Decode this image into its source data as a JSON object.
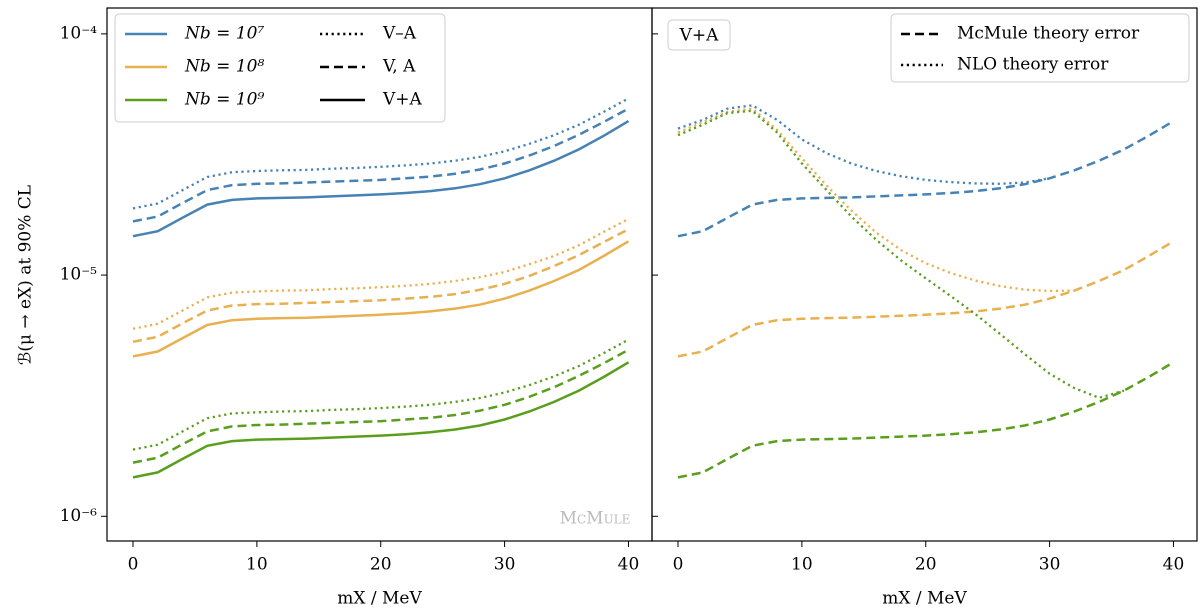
{
  "chart_data": [
    {
      "type": "line",
      "ylabel": "ℬ(μ → eX) at 90% CL",
      "xlabel": "mX / MeV",
      "log_y": true,
      "xlim": [
        -2.1,
        41.9
      ],
      "ylim": [
        7.9e-07,
        0.000128
      ],
      "xticks": [
        0,
        10,
        20,
        30,
        40
      ],
      "yticks": [
        {
          "value": 0.0001,
          "label": "10⁻⁴"
        },
        {
          "value": 1e-05,
          "label": "10⁻⁵"
        },
        {
          "value": 1e-06,
          "label": "10⁻⁶"
        }
      ],
      "annotation": "McMule",
      "legend": {
        "position": "upper left",
        "colors": [
          {
            "label": "Nb = 10⁷",
            "color": "#4682b4"
          },
          {
            "label": "Nb = 10⁸",
            "color": "#e8b04f"
          },
          {
            "label": "Nb = 10⁹",
            "color": "#5a9e1e"
          }
        ],
        "styles": [
          {
            "label": "V–A",
            "dash": "dotted"
          },
          {
            "label": "V, A",
            "dash": "dashed"
          },
          {
            "label": "V+A",
            "dash": "solid"
          }
        ]
      },
      "x": [
        0,
        2,
        4,
        6,
        8,
        10,
        12,
        14,
        16,
        18,
        20,
        22,
        24,
        26,
        28,
        30,
        32,
        34,
        36,
        38,
        40
      ],
      "series": [
        {
          "color": "#4682b4",
          "dash": "dotted",
          "values": [
            1.89e-05,
            1.98e-05,
            2.25e-05,
            2.55e-05,
            2.67e-05,
            2.7e-05,
            2.72e-05,
            2.73e-05,
            2.76e-05,
            2.78e-05,
            2.81e-05,
            2.85e-05,
            2.9e-05,
            2.98e-05,
            3.09e-05,
            3.26e-05,
            3.5e-05,
            3.8e-05,
            4.2e-05,
            4.75e-05,
            5.4e-05
          ]
        },
        {
          "color": "#4682b4",
          "dash": "dashed",
          "values": [
            1.67e-05,
            1.75e-05,
            1.99e-05,
            2.25e-05,
            2.36e-05,
            2.39e-05,
            2.4e-05,
            2.42e-05,
            2.44e-05,
            2.46e-05,
            2.48e-05,
            2.52e-05,
            2.56e-05,
            2.63e-05,
            2.74e-05,
            2.9e-05,
            3.13e-05,
            3.43e-05,
            3.82e-05,
            4.31e-05,
            4.9e-05
          ]
        },
        {
          "color": "#4682b4",
          "dash": "solid",
          "values": [
            1.45e-05,
            1.52e-05,
            1.73e-05,
            1.96e-05,
            2.05e-05,
            2.08e-05,
            2.09e-05,
            2.1e-05,
            2.12e-05,
            2.14e-05,
            2.16e-05,
            2.19e-05,
            2.23e-05,
            2.29e-05,
            2.38e-05,
            2.52e-05,
            2.72e-05,
            2.98e-05,
            3.32e-05,
            3.78e-05,
            4.35e-05
          ]
        },
        {
          "color": "#e8b04f",
          "dash": "dotted",
          "values": [
            5.99e-06,
            6.28e-06,
            7.13e-06,
            8.08e-06,
            8.46e-06,
            8.56e-06,
            8.62e-06,
            8.65e-06,
            8.75e-06,
            8.81e-06,
            8.91e-06,
            9.03e-06,
            9.19e-06,
            9.45e-06,
            9.8e-06,
            1.03e-05,
            1.11e-05,
            1.2e-05,
            1.33e-05,
            1.51e-05,
            1.71e-05
          ]
        },
        {
          "color": "#e8b04f",
          "dash": "dashed",
          "values": [
            5.29e-06,
            5.55e-06,
            6.31e-06,
            7.13e-06,
            7.48e-06,
            7.58e-06,
            7.61e-06,
            7.67e-06,
            7.73e-06,
            7.8e-06,
            7.86e-06,
            7.99e-06,
            8.12e-06,
            8.34e-06,
            8.69e-06,
            9.19e-06,
            9.92e-06,
            1.09e-05,
            1.21e-05,
            1.37e-05,
            1.55e-05
          ]
        },
        {
          "color": "#e8b04f",
          "dash": "solid",
          "values": [
            4.6e-06,
            4.82e-06,
            5.48e-06,
            6.21e-06,
            6.5e-06,
            6.59e-06,
            6.63e-06,
            6.66e-06,
            6.72e-06,
            6.78e-06,
            6.85e-06,
            6.94e-06,
            7.07e-06,
            7.26e-06,
            7.54e-06,
            7.99e-06,
            8.62e-06,
            9.45e-06,
            1.05e-05,
            1.2e-05,
            1.38e-05
          ]
        },
        {
          "color": "#5a9e1e",
          "dash": "dotted",
          "values": [
            1.89e-06,
            1.98e-06,
            2.25e-06,
            2.55e-06,
            2.67e-06,
            2.7e-06,
            2.72e-06,
            2.73e-06,
            2.76e-06,
            2.78e-06,
            2.81e-06,
            2.85e-06,
            2.9e-06,
            2.98e-06,
            3.09e-06,
            3.26e-06,
            3.5e-06,
            3.8e-06,
            4.2e-06,
            4.75e-06,
            5.4e-06
          ]
        },
        {
          "color": "#5a9e1e",
          "dash": "dashed",
          "values": [
            1.67e-06,
            1.75e-06,
            1.99e-06,
            2.25e-06,
            2.36e-06,
            2.39e-06,
            2.4e-06,
            2.42e-06,
            2.44e-06,
            2.46e-06,
            2.48e-06,
            2.52e-06,
            2.56e-06,
            2.63e-06,
            2.74e-06,
            2.9e-06,
            3.13e-06,
            3.43e-06,
            3.82e-06,
            4.31e-06,
            4.9e-06
          ]
        },
        {
          "color": "#5a9e1e",
          "dash": "solid",
          "values": [
            1.45e-06,
            1.52e-06,
            1.73e-06,
            1.96e-06,
            2.05e-06,
            2.08e-06,
            2.09e-06,
            2.1e-06,
            2.12e-06,
            2.14e-06,
            2.16e-06,
            2.19e-06,
            2.23e-06,
            2.29e-06,
            2.38e-06,
            2.52e-06,
            2.72e-06,
            2.98e-06,
            3.32e-06,
            3.78e-06,
            4.35e-06
          ]
        }
      ]
    },
    {
      "type": "line",
      "xlabel": "mX / MeV",
      "log_y": true,
      "xlim": [
        -2.1,
        41.9
      ],
      "ylim": [
        7.9e-07,
        0.000128
      ],
      "xticks": [
        0,
        10,
        20,
        30,
        40
      ],
      "annotation": "V+A",
      "legend": {
        "position": "upper right",
        "styles": [
          {
            "label": "McMule theory error",
            "dash": "dashed"
          },
          {
            "label": "NLO theory error",
            "dash": "dotted"
          }
        ]
      },
      "x": [
        0,
        2,
        4,
        6,
        8,
        10,
        12,
        14,
        16,
        18,
        20,
        22,
        24,
        26,
        28,
        30,
        32,
        34,
        36,
        38,
        40
      ],
      "series": [
        {
          "color": "#4682b4",
          "dash": "dashed",
          "values": [
            1.45e-05,
            1.52e-05,
            1.73e-05,
            1.96e-05,
            2.05e-05,
            2.08e-05,
            2.09e-05,
            2.1e-05,
            2.12e-05,
            2.14e-05,
            2.16e-05,
            2.19e-05,
            2.23e-05,
            2.29e-05,
            2.38e-05,
            2.52e-05,
            2.72e-05,
            2.98e-05,
            3.32e-05,
            3.78e-05,
            4.35e-05
          ]
        },
        {
          "color": "#4682b4",
          "dash": "dotted",
          "values": [
            4.05e-05,
            4.4e-05,
            4.9e-05,
            5.05e-05,
            4.4e-05,
            3.65e-05,
            3.2e-05,
            2.9e-05,
            2.7e-05,
            2.57e-05,
            2.48e-05,
            2.43e-05,
            2.4e-05,
            2.39e-05,
            2.42e-05,
            2.52e-05,
            null,
            null,
            null,
            null,
            null
          ]
        },
        {
          "color": "#e8b04f",
          "dash": "dashed",
          "values": [
            4.6e-06,
            4.82e-06,
            5.48e-06,
            6.21e-06,
            6.5e-06,
            6.59e-06,
            6.63e-06,
            6.66e-06,
            6.72e-06,
            6.78e-06,
            6.85e-06,
            6.94e-06,
            7.07e-06,
            7.26e-06,
            7.54e-06,
            7.99e-06,
            8.62e-06,
            9.45e-06,
            1.05e-05,
            1.2e-05,
            1.38e-05
          ]
        },
        {
          "color": "#e8b04f",
          "dash": "dotted",
          "values": [
            3.9e-05,
            4.3e-05,
            4.75e-05,
            4.9e-05,
            4e-05,
            3.05e-05,
            2.35e-05,
            1.85e-05,
            1.5e-05,
            1.27e-05,
            1.12e-05,
            1.02e-05,
            9.5e-06,
            9e-06,
            8.7e-06,
            8.6e-06,
            8.62e-06,
            null,
            null,
            null,
            null
          ]
        },
        {
          "color": "#5a9e1e",
          "dash": "dashed",
          "values": [
            1.45e-06,
            1.52e-06,
            1.73e-06,
            1.96e-06,
            2.05e-06,
            2.08e-06,
            2.09e-06,
            2.1e-06,
            2.12e-06,
            2.14e-06,
            2.16e-06,
            2.19e-06,
            2.23e-06,
            2.29e-06,
            2.38e-06,
            2.52e-06,
            2.72e-06,
            2.98e-06,
            3.32e-06,
            3.78e-06,
            4.35e-06
          ]
        },
        {
          "color": "#5a9e1e",
          "dash": "dotted",
          "values": [
            3.8e-05,
            4.2e-05,
            4.7e-05,
            4.8e-05,
            3.9e-05,
            2.9e-05,
            2.25e-05,
            1.75e-05,
            1.4e-05,
            1.15e-05,
            9.7e-06,
            8.2e-06,
            6.9e-06,
            5.7e-06,
            4.7e-06,
            3.9e-06,
            3.4e-06,
            3.1e-06,
            3.32e-06,
            null,
            null
          ]
        }
      ]
    }
  ]
}
